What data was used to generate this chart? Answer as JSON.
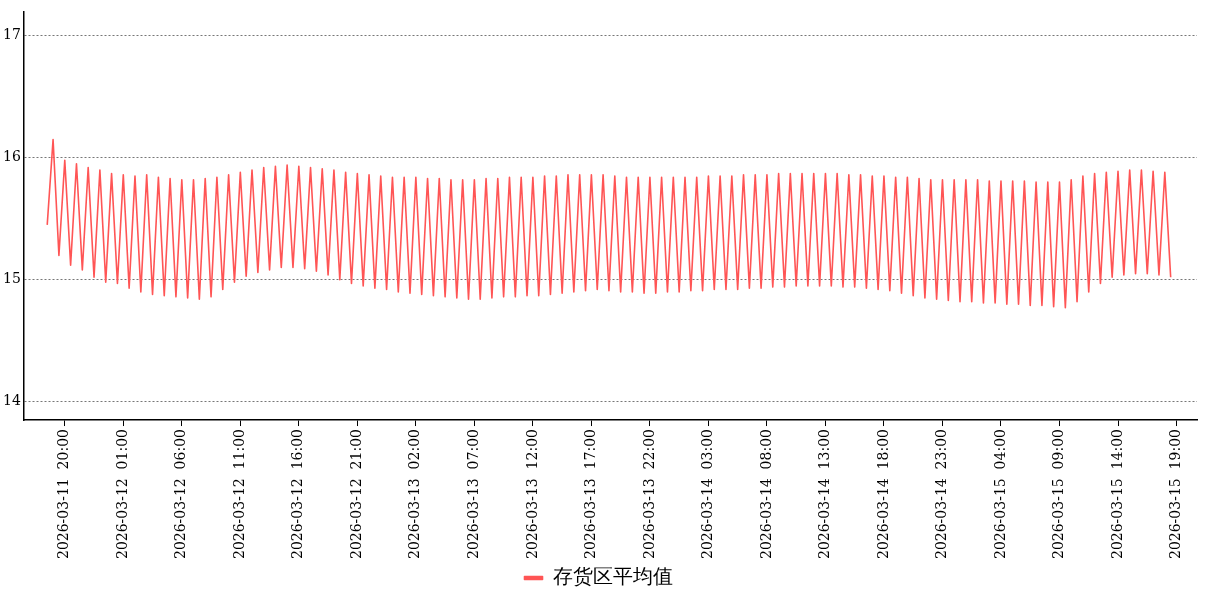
{
  "chart_data": {
    "type": "line",
    "x": [
      "2026-03-11T18:30",
      "2026-03-11T19:00",
      "2026-03-11T19:30",
      "2026-03-11T20:00",
      "2026-03-11T20:30",
      "2026-03-11T21:00",
      "2026-03-11T21:30",
      "2026-03-11T22:00",
      "2026-03-11T22:30",
      "2026-03-11T23:00",
      "2026-03-11T23:30",
      "2026-03-12T00:00",
      "2026-03-12T00:30",
      "2026-03-12T01:00",
      "2026-03-12T01:30",
      "2026-03-12T02:00",
      "2026-03-12T02:30",
      "2026-03-12T03:00",
      "2026-03-12T03:30",
      "2026-03-12T04:00",
      "2026-03-12T04:30",
      "2026-03-12T05:00",
      "2026-03-12T05:30",
      "2026-03-12T06:00",
      "2026-03-12T06:30",
      "2026-03-12T07:00",
      "2026-03-12T07:30",
      "2026-03-12T08:00",
      "2026-03-12T08:30",
      "2026-03-12T09:00",
      "2026-03-12T09:30",
      "2026-03-12T10:00",
      "2026-03-12T10:30",
      "2026-03-12T11:00",
      "2026-03-12T11:30",
      "2026-03-12T12:00",
      "2026-03-12T12:30",
      "2026-03-12T13:00",
      "2026-03-12T13:30",
      "2026-03-12T14:00",
      "2026-03-12T14:30",
      "2026-03-12T15:00",
      "2026-03-12T15:30",
      "2026-03-12T16:00",
      "2026-03-12T16:30",
      "2026-03-12T17:00",
      "2026-03-12T17:30",
      "2026-03-12T18:00",
      "2026-03-12T18:30",
      "2026-03-12T19:00",
      "2026-03-12T19:30",
      "2026-03-12T20:00",
      "2026-03-12T20:30",
      "2026-03-12T21:00",
      "2026-03-12T21:30",
      "2026-03-12T22:00",
      "2026-03-12T22:30",
      "2026-03-12T23:00",
      "2026-03-12T23:30",
      "2026-03-13T00:00",
      "2026-03-13T00:30",
      "2026-03-13T01:00",
      "2026-03-13T01:30",
      "2026-03-13T02:00",
      "2026-03-13T02:30",
      "2026-03-13T03:00",
      "2026-03-13T03:30",
      "2026-03-13T04:00",
      "2026-03-13T04:30",
      "2026-03-13T05:00",
      "2026-03-13T05:30",
      "2026-03-13T06:00",
      "2026-03-13T06:30",
      "2026-03-13T07:00",
      "2026-03-13T07:30",
      "2026-03-13T08:00",
      "2026-03-13T08:30",
      "2026-03-13T09:00",
      "2026-03-13T09:30",
      "2026-03-13T10:00",
      "2026-03-13T10:30",
      "2026-03-13T11:00",
      "2026-03-13T11:30",
      "2026-03-13T12:00",
      "2026-03-13T12:30",
      "2026-03-13T13:00",
      "2026-03-13T13:30",
      "2026-03-13T14:00",
      "2026-03-13T14:30",
      "2026-03-13T15:00",
      "2026-03-13T15:30",
      "2026-03-13T16:00",
      "2026-03-13T16:30",
      "2026-03-13T17:00",
      "2026-03-13T17:30",
      "2026-03-13T18:00",
      "2026-03-13T18:30",
      "2026-03-13T19:00",
      "2026-03-13T19:30",
      "2026-03-13T20:00",
      "2026-03-13T20:30",
      "2026-03-13T21:00",
      "2026-03-13T21:30",
      "2026-03-13T22:00",
      "2026-03-13T22:30",
      "2026-03-13T23:00",
      "2026-03-13T23:30",
      "2026-03-14T00:00",
      "2026-03-14T00:30",
      "2026-03-14T01:00",
      "2026-03-14T01:30",
      "2026-03-14T02:00",
      "2026-03-14T02:30",
      "2026-03-14T03:00",
      "2026-03-14T03:30",
      "2026-03-14T04:00",
      "2026-03-14T04:30",
      "2026-03-14T05:00",
      "2026-03-14T05:30",
      "2026-03-14T06:00",
      "2026-03-14T06:30",
      "2026-03-14T07:00",
      "2026-03-14T07:30",
      "2026-03-14T08:00",
      "2026-03-14T08:30",
      "2026-03-14T09:00",
      "2026-03-14T09:30",
      "2026-03-14T10:00",
      "2026-03-14T10:30",
      "2026-03-14T11:00",
      "2026-03-14T11:30",
      "2026-03-14T12:00",
      "2026-03-14T12:30",
      "2026-03-14T13:00",
      "2026-03-14T13:30",
      "2026-03-14T14:00",
      "2026-03-14T14:30",
      "2026-03-14T15:00",
      "2026-03-14T15:30",
      "2026-03-14T16:00",
      "2026-03-14T16:30",
      "2026-03-14T17:00",
      "2026-03-14T17:30",
      "2026-03-14T18:00",
      "2026-03-14T18:30",
      "2026-03-14T19:00",
      "2026-03-14T19:30",
      "2026-03-14T20:00",
      "2026-03-14T20:30",
      "2026-03-14T21:00",
      "2026-03-14T21:30",
      "2026-03-14T22:00",
      "2026-03-14T22:30",
      "2026-03-14T23:00",
      "2026-03-14T23:30",
      "2026-03-15T00:00",
      "2026-03-15T00:30",
      "2026-03-15T01:00",
      "2026-03-15T01:30",
      "2026-03-15T02:00",
      "2026-03-15T02:30",
      "2026-03-15T03:00",
      "2026-03-15T03:30",
      "2026-03-15T04:00",
      "2026-03-15T04:30",
      "2026-03-15T05:00",
      "2026-03-15T05:30",
      "2026-03-15T06:00",
      "2026-03-15T06:30",
      "2026-03-15T07:00",
      "2026-03-15T07:30",
      "2026-03-15T08:00",
      "2026-03-15T08:30",
      "2026-03-15T09:00",
      "2026-03-15T09:30",
      "2026-03-15T10:00",
      "2026-03-15T10:30",
      "2026-03-15T11:00",
      "2026-03-15T11:30",
      "2026-03-15T12:00",
      "2026-03-15T12:30",
      "2026-03-15T13:00",
      "2026-03-15T13:30",
      "2026-03-15T14:00",
      "2026-03-15T14:30",
      "2026-03-15T15:00",
      "2026-03-15T15:30",
      "2026-03-15T16:00",
      "2026-03-15T16:30",
      "2026-03-15T17:00",
      "2026-03-15T17:30",
      "2026-03-15T18:00",
      "2026-03-15T18:30"
    ],
    "series": [
      {
        "name": "存货区平均值",
        "color": "#ff5555",
        "values": [
          15.45,
          16.15,
          15.2,
          15.98,
          15.12,
          15.95,
          15.08,
          15.92,
          15.02,
          15.9,
          14.98,
          15.87,
          14.97,
          15.86,
          14.93,
          15.85,
          14.9,
          15.86,
          14.88,
          15.84,
          14.87,
          15.83,
          14.86,
          15.82,
          14.85,
          15.82,
          14.84,
          15.83,
          14.86,
          15.84,
          14.92,
          15.86,
          14.98,
          15.88,
          15.03,
          15.9,
          15.06,
          15.92,
          15.08,
          15.93,
          15.1,
          15.94,
          15.1,
          15.93,
          15.09,
          15.92,
          15.07,
          15.91,
          15.04,
          15.9,
          15.0,
          15.88,
          14.97,
          15.87,
          14.95,
          15.86,
          14.93,
          15.85,
          14.92,
          15.84,
          14.9,
          15.84,
          14.89,
          15.84,
          14.88,
          15.83,
          14.87,
          15.83,
          14.86,
          15.82,
          14.85,
          15.82,
          14.84,
          15.82,
          14.84,
          15.83,
          14.85,
          15.83,
          14.86,
          15.84,
          14.86,
          15.84,
          14.87,
          15.84,
          14.87,
          15.85,
          14.88,
          15.85,
          14.89,
          15.86,
          14.9,
          15.86,
          14.91,
          15.86,
          14.92,
          15.86,
          14.91,
          15.85,
          14.9,
          15.84,
          14.9,
          15.84,
          14.89,
          15.84,
          14.89,
          15.84,
          14.9,
          15.84,
          14.9,
          15.84,
          14.91,
          15.84,
          14.91,
          15.85,
          14.92,
          15.85,
          14.92,
          15.85,
          14.92,
          15.86,
          14.93,
          15.86,
          14.93,
          15.86,
          14.94,
          15.87,
          14.94,
          15.87,
          14.95,
          15.87,
          14.95,
          15.87,
          14.95,
          15.87,
          14.95,
          15.87,
          14.94,
          15.86,
          14.94,
          15.86,
          14.93,
          15.85,
          14.92,
          15.85,
          14.91,
          15.84,
          14.89,
          15.84,
          14.87,
          15.83,
          14.85,
          15.82,
          14.84,
          15.82,
          14.83,
          15.82,
          14.82,
          15.82,
          14.82,
          15.82,
          14.81,
          15.81,
          14.81,
          15.81,
          14.8,
          15.81,
          14.8,
          15.81,
          14.79,
          15.8,
          14.79,
          15.8,
          14.78,
          15.8,
          14.77,
          15.82,
          14.82,
          15.85,
          14.9,
          15.87,
          14.97,
          15.88,
          15.02,
          15.89,
          15.04,
          15.9,
          15.05,
          15.9,
          15.05,
          15.89,
          15.04,
          15.88,
          15.02
        ]
      }
    ],
    "xlim": [
      "2026-03-11T16:30",
      "2026-03-15T20:45"
    ],
    "xticks": [
      {
        "value": "2026-03-11T20:00",
        "label": "2026-03-11  20:00"
      },
      {
        "value": "2026-03-12T01:00",
        "label": "2026-03-12  01:00"
      },
      {
        "value": "2026-03-12T06:00",
        "label": "2026-03-12  06:00"
      },
      {
        "value": "2026-03-12T11:00",
        "label": "2026-03-12  11:00"
      },
      {
        "value": "2026-03-12T16:00",
        "label": "2026-03-12  16:00"
      },
      {
        "value": "2026-03-12T21:00",
        "label": "2026-03-12  21:00"
      },
      {
        "value": "2026-03-13T02:00",
        "label": "2026-03-13  02:00"
      },
      {
        "value": "2026-03-13T07:00",
        "label": "2026-03-13  07:00"
      },
      {
        "value": "2026-03-13T12:00",
        "label": "2026-03-13  12:00"
      },
      {
        "value": "2026-03-13T17:00",
        "label": "2026-03-13  17:00"
      },
      {
        "value": "2026-03-13T22:00",
        "label": "2026-03-13  22:00"
      },
      {
        "value": "2026-03-14T03:00",
        "label": "2026-03-14  03:00"
      },
      {
        "value": "2026-03-14T08:00",
        "label": "2026-03-14  08:00"
      },
      {
        "value": "2026-03-14T13:00",
        "label": "2026-03-14  13:00"
      },
      {
        "value": "2026-03-14T18:00",
        "label": "2026-03-14  18:00"
      },
      {
        "value": "2026-03-14T23:00",
        "label": "2026-03-14  23:00"
      },
      {
        "value": "2026-03-15T04:00",
        "label": "2026-03-15  04:00"
      },
      {
        "value": "2026-03-15T09:00",
        "label": "2026-03-15  09:00"
      },
      {
        "value": "2026-03-15T14:00",
        "label": "2026-03-15  14:00"
      },
      {
        "value": "2026-03-15T19:00",
        "label": "2026-03-15  19:00"
      }
    ],
    "ylim": [
      13.85,
      17.2
    ],
    "yticks": [
      14,
      15,
      16,
      17
    ],
    "grid": "y",
    "legend": "bottom",
    "marker": "none",
    "line_style": "solid"
  }
}
